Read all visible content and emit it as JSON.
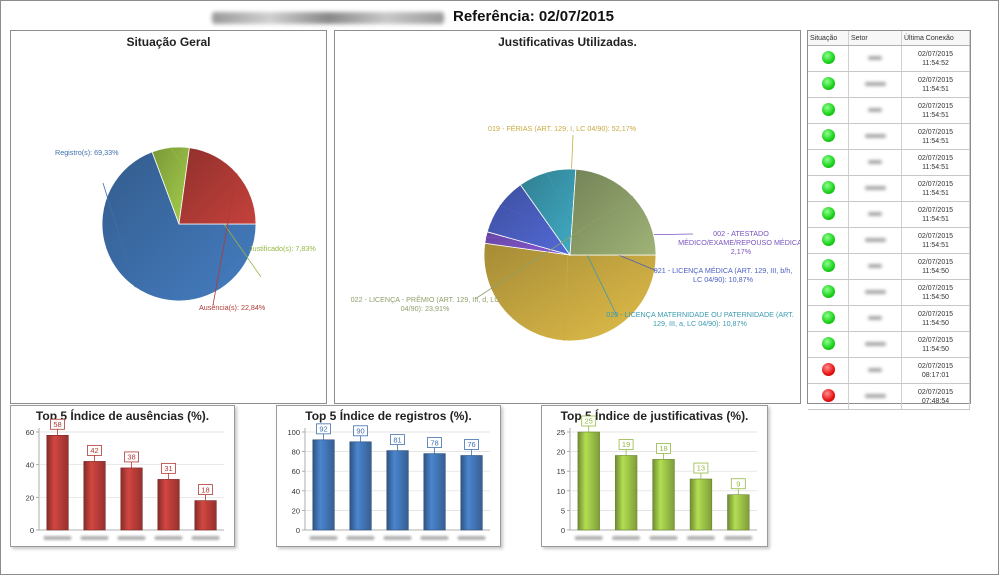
{
  "header": {
    "title": "Referência: 02/07/2015"
  },
  "panels": {
    "situacao": {
      "title": "Situação Geral"
    },
    "justificativas": {
      "title": "Justificativas Utilizadas."
    }
  },
  "colors": {
    "registros": "#3e70ac",
    "ausencias": "#b03a36",
    "justificado": "#94b944",
    "ferias": "#c9aa42",
    "licenca_premio": "#8ea06a",
    "licenca_maternidade": "#3a9ab0",
    "licenca_medica": "#4a5fc0",
    "atestado": "#7a52c0"
  },
  "table": {
    "headers": [
      "Situação",
      "Setor",
      "Última Conexão"
    ],
    "rows": [
      {
        "status": "green",
        "date": "02/07/2015",
        "time": "11:54:52"
      },
      {
        "status": "green",
        "date": "02/07/2015",
        "time": "11:54:51"
      },
      {
        "status": "green",
        "date": "02/07/2015",
        "time": "11:54:51"
      },
      {
        "status": "green",
        "date": "02/07/2015",
        "time": "11:54:51"
      },
      {
        "status": "green",
        "date": "02/07/2015",
        "time": "11:54:51"
      },
      {
        "status": "green",
        "date": "02/07/2015",
        "time": "11:54:51"
      },
      {
        "status": "green",
        "date": "02/07/2015",
        "time": "11:54:51"
      },
      {
        "status": "green",
        "date": "02/07/2015",
        "time": "11:54:51"
      },
      {
        "status": "green",
        "date": "02/07/2015",
        "time": "11:54:50"
      },
      {
        "status": "green",
        "date": "02/07/2015",
        "time": "11:54:50"
      },
      {
        "status": "green",
        "date": "02/07/2015",
        "time": "11:54:50"
      },
      {
        "status": "green",
        "date": "02/07/2015",
        "time": "11:54:50"
      },
      {
        "status": "red",
        "date": "02/07/2015",
        "time": "08:17:01"
      },
      {
        "status": "red",
        "date": "02/07/2015",
        "time": "07:48:54"
      }
    ]
  },
  "chart_data": [
    {
      "type": "pie",
      "title": "Situação Geral",
      "slices": [
        {
          "label": "Registro(s): 69,33%",
          "value": 69.33,
          "color": "#3e70ac"
        },
        {
          "label": "Justificado(s): 7,83%",
          "value": 7.83,
          "color": "#94b944"
        },
        {
          "label": "Ausência(s): 22,84%",
          "value": 22.84,
          "color": "#b03a36"
        }
      ]
    },
    {
      "type": "pie",
      "title": "Justificativas Utilizadas.",
      "slices": [
        {
          "label": [
            "019 - FÉRIAS (ART. 129, I, LC 04/90): 52,17%"
          ],
          "value": 52.17,
          "color": "#c9aa42"
        },
        {
          "label": [
            "002 - ATESTADO",
            "MÉDICO/EXAME/REPOUSO MÉDICA:",
            "2,17%"
          ],
          "value": 2.17,
          "color": "#7a52c0"
        },
        {
          "label": [
            "021 - LICENÇA MÉDICA (ART. 129, III, b/h,",
            "LC 04/90): 10,87%"
          ],
          "value": 10.87,
          "color": "#4a5fc0"
        },
        {
          "label": [
            "020 - LICENÇA MATERNIDADE OU PATERNIDADE (ART.",
            "129, III, a, LC 04/90): 10,87%"
          ],
          "value": 10.87,
          "color": "#3a9ab0"
        },
        {
          "label": [
            "022 - LICENÇA - PRÊMIO (ART. 129, III, d, LC",
            "04/90): 23,91%"
          ],
          "value": 23.91,
          "color": "#8ea06a"
        }
      ]
    },
    {
      "type": "bar",
      "title": "Top 5 Índice de ausências (%).",
      "values": [
        58,
        42,
        38,
        31,
        18
      ],
      "ylim": [
        0,
        60
      ],
      "yticks": [
        0,
        20,
        40,
        60
      ],
      "color": "#b03a36"
    },
    {
      "type": "bar",
      "title": "Top 5 Índice de registros (%).",
      "values": [
        92,
        90,
        81,
        78,
        76
      ],
      "ylim": [
        0,
        100
      ],
      "yticks": [
        0,
        20,
        40,
        60,
        80,
        100
      ],
      "color": "#3e70ac"
    },
    {
      "type": "bar",
      "title": "Top 5 Índice de justificativas (%).",
      "values": [
        25,
        19,
        18,
        13,
        9
      ],
      "ylim": [
        0,
        25
      ],
      "yticks": [
        0,
        5,
        10,
        15,
        20,
        25
      ],
      "color": "#94b944"
    }
  ]
}
